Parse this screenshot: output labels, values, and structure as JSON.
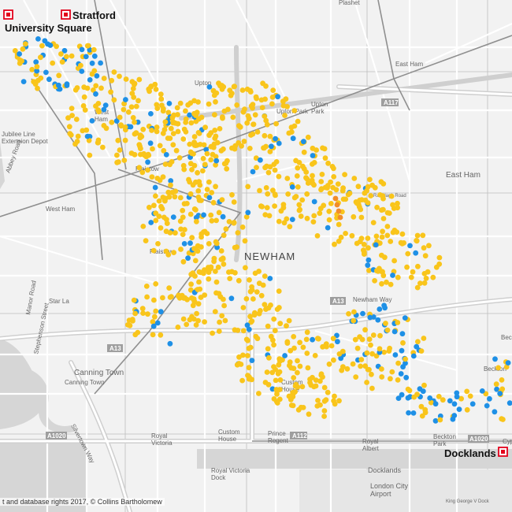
{
  "map": {
    "district_label": "NEWHAM",
    "stations": {
      "stratford": "Stratford",
      "university_square": "University Square",
      "docklands": "Docklands"
    },
    "places": {
      "plashet": "Plashet",
      "east_ham_station": "East Ham",
      "upton": "Upton",
      "upton_park": "Upton Park",
      "upton_park_area": "Upton\nPark",
      "east_ham": "East Ham",
      "west_ham_area": "West\nHam",
      "west_ham": "West Ham",
      "jubilee_depot": "Jubilee Line\nExtension Depot",
      "plaistow_station": "Plaistow",
      "plaistow_area": "Plaistow",
      "canning_town": "Canning Town",
      "canning_town_station": "Canning Town",
      "custom_house": "Custom\nHouse",
      "custom_house_station": "Custom\nHouse",
      "royal_victoria": "Royal\nVictoria",
      "prince_regent": "Prince\nRegent",
      "royal_albert": "Royal\nAlbert",
      "beckton_park": "Beckton\nPark",
      "beckton": "Beckton",
      "docklands_area": "Docklands",
      "london_city_airport": "London City\nAirport",
      "royal_victoria_dock": "Royal Victoria\nDock",
      "king_george_v_dock": "King George V Dock",
      "abbey_road": "Abbey Road",
      "manor_road": "Manor Road",
      "stephenson_street": "Stephenson Street",
      "star_la": "Star La",
      "newham_way": "Newham Way",
      "silvertown_way": "Silvertown Way",
      "ranelagh": "Ranelagh Road",
      "cyp": "Cyp",
      "bec": "Bec"
    },
    "roads": {
      "a117": "A117",
      "a13_east": "A13",
      "a13_west": "A13",
      "a112": "A112",
      "a1020_west": "A1020",
      "a1020_east": "A1020"
    },
    "attribution": "t and database rights 2017, © Collins Bartholomew",
    "colors": {
      "background": "#f2f2f2",
      "road": "#ffffff",
      "major_road": "#c8c8c8",
      "rail": "#9a9a9a",
      "water": "#dcdcdc",
      "yellow_point": "#f9c51b",
      "blue_point": "#1e90e6",
      "orange_point": "#f28c28",
      "station_red": "#e3001b"
    },
    "point_series": [
      {
        "color": "yellow",
        "approx_count": 900
      },
      {
        "color": "blue",
        "approx_count": 180
      },
      {
        "color": "orange",
        "approx_count": 4
      }
    ]
  }
}
